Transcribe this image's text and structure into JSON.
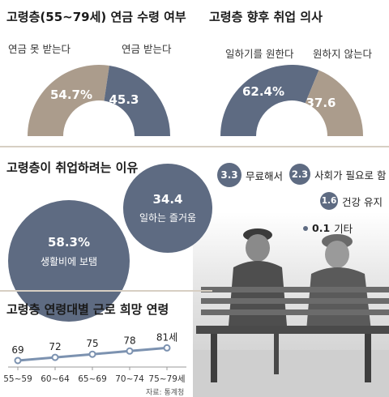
{
  "panel_pension": {
    "title": "고령층(55~79세) 연금 수령 여부",
    "label_no": "연금 못 받는다",
    "label_yes": "연금 받는다",
    "value_no": "54.7%",
    "value_yes": "45.3"
  },
  "panel_work": {
    "title": "고령층 향후 취업 의사",
    "label_yes": "일하기를 원한다",
    "label_no": "원하지 않는다",
    "value_yes": "62.4%",
    "value_no": "37.6"
  },
  "panel_reason": {
    "title": "고령층이 취업하려는 이유",
    "big1_value": "58.3%",
    "big1_label": "생활비에 보탬",
    "big2_value": "34.4",
    "big2_label": "일하는 즐거움",
    "legend": [
      {
        "value": "3.3",
        "label": "무료해서"
      },
      {
        "value": "2.3",
        "label": "사회가 필요로 함"
      },
      {
        "value": "1.6",
        "label": "건강 유지"
      },
      {
        "value": "0.1",
        "label": "기타"
      }
    ]
  },
  "panel_age": {
    "title": "고령층 연령대별 근로 희망 연령",
    "source": "자료: 통계청"
  },
  "colors": {
    "blue": "#5e6b82",
    "tan": "#ab9c8c",
    "line": "#7c92b0",
    "divider": "#d7cfc3"
  },
  "chart_data": [
    {
      "type": "pie",
      "title": "고령층(55~79세) 연금 수령 여부",
      "categories": [
        "연금 못 받는다",
        "연금 받는다"
      ],
      "values": [
        54.7,
        45.3
      ],
      "unit": "%",
      "style": "half-donut"
    },
    {
      "type": "pie",
      "title": "고령층 향후 취업 의사",
      "categories": [
        "일하기를 원한다",
        "원하지 않는다"
      ],
      "values": [
        62.4,
        37.6
      ],
      "unit": "%",
      "style": "half-donut"
    },
    {
      "type": "bubble",
      "title": "고령층이 취업하려는 이유",
      "categories": [
        "생활비에 보탬",
        "일하는 즐거움",
        "무료해서",
        "사회가 필요로 함",
        "건강 유지",
        "기타"
      ],
      "values": [
        58.3,
        34.4,
        3.3,
        2.3,
        1.6,
        0.1
      ],
      "unit": "%"
    },
    {
      "type": "line",
      "title": "고령층 연령대별 근로 희망 연령",
      "categories": [
        "55~59",
        "60~64",
        "65~69",
        "70~74",
        "75~79세"
      ],
      "values": [
        69,
        72,
        75,
        78,
        81
      ],
      "value_labels": [
        "69",
        "72",
        "75",
        "78",
        "81세"
      ],
      "ylim": [
        60,
        90
      ],
      "grid": false
    }
  ]
}
